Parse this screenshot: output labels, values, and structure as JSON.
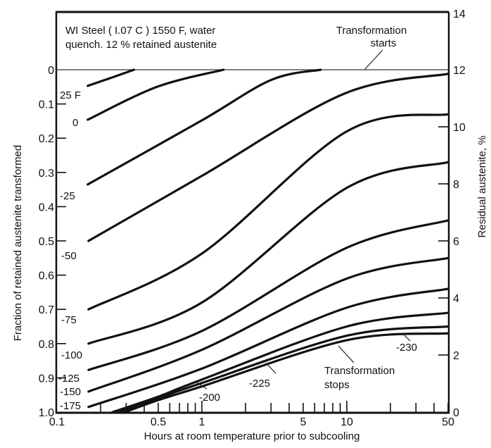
{
  "chart_data": {
    "type": "line",
    "title": "WI Steel (1.07C) 1550 F, water quench. 12% retained austenite",
    "title_lines": [
      "WI Steel ( I.07 C )  1550 F,  water",
      "quench.  12 %  retained  austenite"
    ],
    "xlabel": "Hours at room  temperature prior to subcooling",
    "ylabel": "Fraction of retained austenite transformed",
    "y2label": "Residual austenite, %",
    "xscale": "log",
    "xlim": [
      0.1,
      50
    ],
    "ylim": [
      0,
      1.0
    ],
    "y_inverted": true,
    "y2lim": [
      0,
      14
    ],
    "x_ticks": [
      0.1,
      0.5,
      1,
      5,
      10,
      50
    ],
    "x_tick_labels": [
      "0.1",
      "0.5",
      "1",
      "5",
      "10",
      "50"
    ],
    "x_minor_ticks": [
      0.2,
      0.3,
      0.4,
      0.5,
      0.6,
      0.7,
      0.8,
      0.9,
      1,
      2,
      3,
      4,
      5,
      6,
      7,
      8,
      9,
      10,
      20,
      30,
      40,
      50
    ],
    "y_ticks": [
      0,
      0.1,
      0.2,
      0.3,
      0.4,
      0.5,
      0.6,
      0.7,
      0.8,
      0.9,
      1.0
    ],
    "y_tick_labels": [
      "0",
      "0.1",
      "0.2",
      "0.3",
      "0.4",
      "0.5",
      "0.6",
      "0.7",
      "0.8",
      "0.9",
      "1.0"
    ],
    "y2_ticks": [
      0,
      2,
      4,
      6,
      8,
      10,
      12,
      14
    ],
    "y2_tick_labels": [
      "0",
      "2",
      "4",
      "6",
      "8",
      "10",
      "12",
      "14"
    ],
    "annotations": {
      "start": [
        "Transformation",
        "starts"
      ],
      "stop": [
        "Transformation",
        "stops"
      ]
    },
    "series": [
      {
        "name": "25 F",
        "points": [
          [
            0.163,
            0.047
          ],
          [
            0.25,
            0.02
          ],
          [
            0.34,
            0.0
          ]
        ]
      },
      {
        "name": "0",
        "points": [
          [
            0.163,
            0.146
          ],
          [
            0.49,
            0.05
          ],
          [
            1.41,
            0.0
          ]
        ]
      },
      {
        "name": "-25",
        "points": [
          [
            0.163,
            0.335
          ],
          [
            0.98,
            0.15
          ],
          [
            3.0,
            0.03
          ],
          [
            6.6,
            0.0
          ]
        ]
      },
      {
        "name": "-50",
        "points": [
          [
            0.165,
            0.5
          ],
          [
            1.0,
            0.31
          ],
          [
            9.6,
            0.07
          ],
          [
            50,
            0.012
          ]
        ]
      },
      {
        "name": "-75",
        "points": [
          [
            0.165,
            0.7
          ],
          [
            1.0,
            0.537
          ],
          [
            10,
            0.18
          ],
          [
            50,
            0.13
          ]
        ]
      },
      {
        "name": "-100",
        "points": [
          [
            0.165,
            0.8
          ],
          [
            1.0,
            0.68
          ],
          [
            10,
            0.345
          ],
          [
            50,
            0.27
          ]
        ]
      },
      {
        "name": "-125",
        "points": [
          [
            0.165,
            0.877
          ],
          [
            1.0,
            0.763
          ],
          [
            10,
            0.52
          ],
          [
            50,
            0.44
          ]
        ]
      },
      {
        "name": "-150",
        "points": [
          [
            0.165,
            0.94
          ],
          [
            1.0,
            0.818
          ],
          [
            10,
            0.61
          ],
          [
            50,
            0.55
          ]
        ]
      },
      {
        "name": "-175",
        "points": [
          [
            0.165,
            0.985
          ],
          [
            1.0,
            0.873
          ],
          [
            10,
            0.695
          ],
          [
            50,
            0.64
          ]
        ]
      },
      {
        "name": "-200",
        "points": [
          [
            0.242,
            1.0
          ],
          [
            0.5,
            0.955
          ],
          [
            1.0,
            0.905
          ],
          [
            10,
            0.75
          ],
          [
            50,
            0.71
          ]
        ]
      },
      {
        "name": "-225",
        "points": [
          [
            0.27,
            1.0
          ],
          [
            0.5,
            0.96
          ],
          [
            1.0,
            0.915
          ],
          [
            10,
            0.777
          ],
          [
            50,
            0.75
          ]
        ]
      },
      {
        "name": "-230",
        "points": [
          [
            0.295,
            1.0
          ],
          [
            0.5,
            0.965
          ],
          [
            1.0,
            0.925
          ],
          [
            10,
            0.79
          ],
          [
            50,
            0.77
          ]
        ]
      }
    ]
  }
}
